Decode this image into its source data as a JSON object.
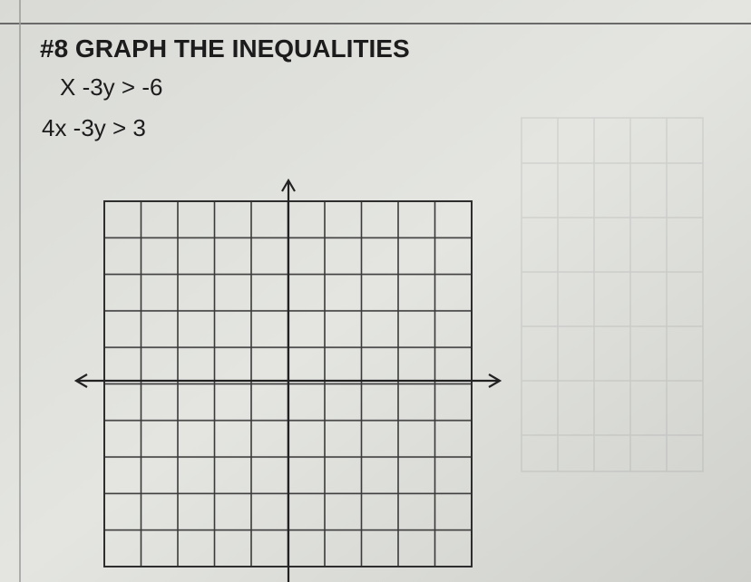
{
  "header": {
    "title": "#8 GRAPH THE INEQUALITIES"
  },
  "inequalities": [
    "X -3y > -6",
    "4x -3y > 3"
  ]
}
